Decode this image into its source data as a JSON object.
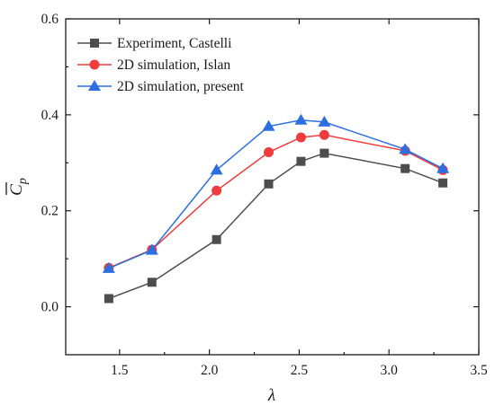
{
  "chart_data": {
    "type": "line",
    "title": "",
    "xlabel": "λ",
    "ylabel_main": "C",
    "ylabel_sub": "p",
    "xlim": [
      1.2,
      3.5
    ],
    "ylim": [
      -0.1,
      0.6
    ],
    "xticks": [
      1.5,
      2.0,
      2.5,
      3.0,
      3.5
    ],
    "xtick_labels": [
      "1.5",
      "2.0",
      "2.5",
      "3.0",
      "3.5"
    ],
    "yticks": [
      0.0,
      0.2,
      0.4,
      0.6
    ],
    "ytick_labels": [
      "0.0",
      "0.2",
      "0.4",
      "0.6"
    ],
    "grid": false,
    "legend_position": "top-left",
    "x": [
      1.44,
      1.68,
      2.04,
      2.33,
      2.51,
      2.64,
      3.09,
      3.3
    ],
    "series": [
      {
        "name": "Experiment, Castelli",
        "color": "#4d4d4d",
        "marker": "square",
        "values": [
          0.017,
          0.051,
          0.14,
          0.256,
          0.303,
          0.32,
          0.288,
          0.258
        ]
      },
      {
        "name": "2D simulation, Islan",
        "color": "#ef3b3b",
        "marker": "circle",
        "values": [
          0.081,
          0.119,
          0.242,
          0.322,
          0.353,
          0.358,
          0.325,
          0.285
        ]
      },
      {
        "name": "2D simulation, present",
        "color": "#2b6fe0",
        "marker": "triangle",
        "values": [
          0.08,
          0.118,
          0.285,
          0.376,
          0.389,
          0.385,
          0.328,
          0.288
        ]
      }
    ]
  }
}
